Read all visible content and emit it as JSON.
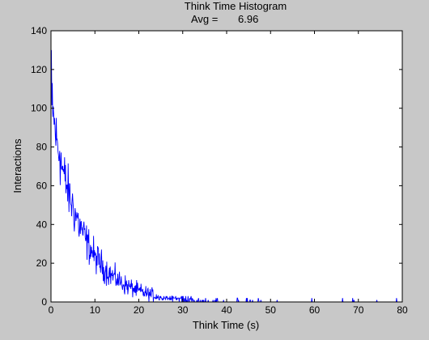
{
  "chart_data": {
    "type": "line",
    "title": "Think Time Histogram",
    "subtitle_label": "Avg =",
    "subtitle_value": "6.96",
    "xlabel": "Think Time (s)",
    "ylabel": "Interactions",
    "xlim": [
      0,
      80
    ],
    "ylim": [
      0,
      140
    ],
    "xticks": [
      0,
      10,
      20,
      30,
      40,
      50,
      60,
      70,
      80
    ],
    "yticks": [
      0,
      20,
      40,
      60,
      80,
      100,
      120,
      140
    ],
    "grid": false,
    "colors": {
      "background": "#c8c8c8",
      "axes": "#ffffff",
      "series": "#0000ff"
    },
    "series": [
      {
        "curve": {
          "amplitude": 100,
          "mean_seconds": 6.96,
          "bin_width_seconds": 0.1,
          "x_max": 80
        },
        "x": [
          0.1,
          0.3,
          0.5,
          0.8,
          1.0,
          1.5,
          2.0,
          3.0,
          4.0,
          5.0,
          6.0,
          7.0,
          8.0,
          10.0,
          12.0,
          15.0,
          20.0,
          25.0,
          30.0,
          40.0,
          50.0,
          60.0,
          70.0,
          75.0
        ],
        "values": [
          130,
          113,
          101,
          95,
          85,
          82,
          78,
          66,
          58,
          52,
          44,
          37,
          33,
          24,
          18,
          12,
          6,
          3,
          1,
          0,
          0,
          0,
          0,
          0
        ]
      }
    ]
  }
}
